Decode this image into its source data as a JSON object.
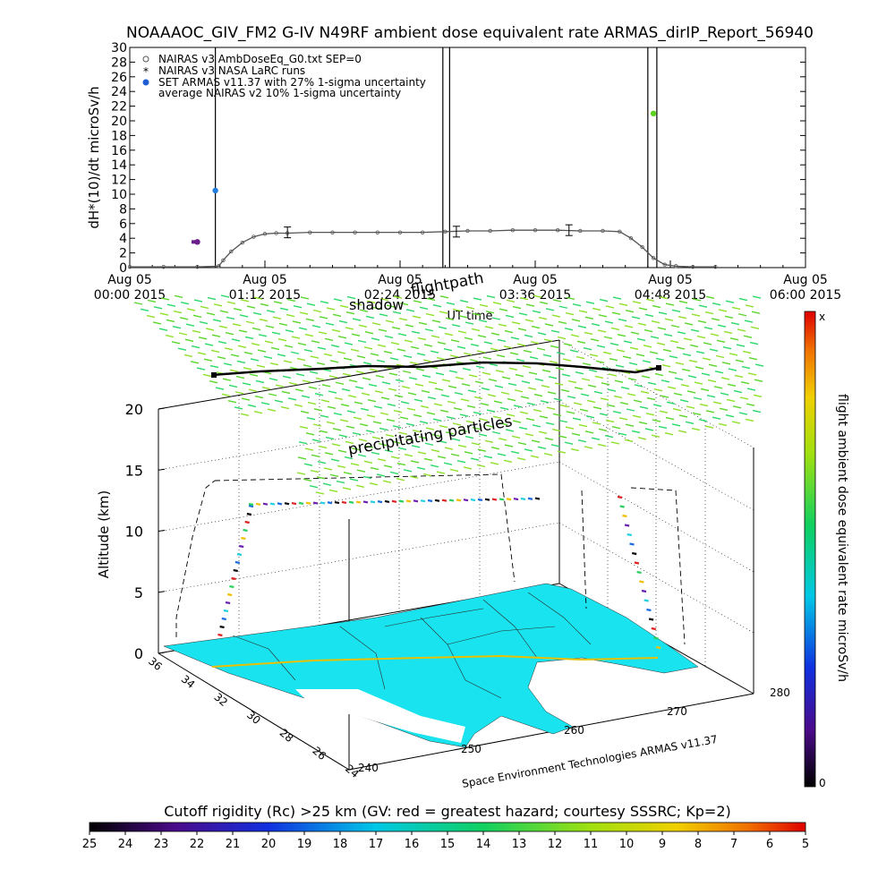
{
  "chart_data": [
    {
      "type": "line",
      "title": "NOAAAOC_GIV_FM2 G-IV    N49RF   ambient dose equivalent rate ARMAS_dirIP_Report_56940",
      "xlabel": "UT time",
      "ylabel": "dH*(10)/dt microSv/h",
      "ylim": [
        0,
        30
      ],
      "yticks": [
        "0",
        "2",
        "4",
        "6",
        "8",
        "10",
        "12",
        "14",
        "16",
        "18",
        "20",
        "22",
        "24",
        "26",
        "28",
        "30"
      ],
      "xtick_labels": [
        [
          "Aug 05",
          "00:00 2015"
        ],
        [
          "Aug 05",
          "01:12 2015"
        ],
        [
          "Aug 05",
          "02:24 2015"
        ],
        [
          "Aug 05",
          "03:36 2015"
        ],
        [
          "Aug 05",
          "04:48 2015"
        ],
        [
          "Aug 05",
          "06:00 2015"
        ]
      ],
      "xlim_hours": [
        0,
        6
      ],
      "legend": [
        "NAIRAS v3 AmbDoseEq_G0.txt SEP=0",
        "NAIRAS v3 NASA LaRC runs",
        "SET ARMAS v11.37 with 27% 1-sigma uncertainty",
        "average NAIRAS v2 10% 1-sigma uncertainty"
      ],
      "legend_colors": [
        "#555555",
        "#555555",
        "#1f5fd6",
        "#000000"
      ],
      "series": [
        {
          "name": "NAIRAS v3 AmbDoseEq_G0.txt SEP=0",
          "x": [
            0.0,
            0.3,
            0.6,
            0.79,
            0.83,
            0.9,
            1.0,
            1.1,
            1.2,
            1.3,
            1.4,
            1.6,
            1.8,
            2.0,
            2.2,
            2.4,
            2.6,
            2.8,
            3.0,
            3.2,
            3.4,
            3.6,
            3.8,
            4.0,
            4.2,
            4.35,
            4.45,
            4.55,
            4.65,
            4.75,
            4.85,
            5.0,
            5.2
          ],
          "y": [
            0.1,
            0.1,
            0.1,
            0.2,
            1.0,
            2.2,
            3.4,
            4.2,
            4.6,
            4.7,
            4.7,
            4.8,
            4.8,
            4.8,
            4.8,
            4.8,
            4.8,
            4.9,
            5.0,
            5.0,
            5.1,
            5.1,
            5.1,
            5.0,
            5.0,
            4.9,
            4.0,
            2.8,
            1.3,
            0.4,
            0.2,
            0.1,
            0.1
          ]
        },
        {
          "name": "NAIRAS v3 NASA LaRC runs",
          "x": [
            1.4,
            2.9,
            3.9
          ],
          "y": [
            4.8,
            4.9,
            5.1
          ]
        },
        {
          "name": "SET ARMAS v11.37 with 27% 1-sigma uncertainty",
          "x": [
            0.6,
            0.76,
            4.65
          ],
          "y": [
            3.5,
            10.5,
            21.0
          ],
          "colors": [
            "#6a1f8a",
            "#1f7de0",
            "#5ad21f"
          ]
        }
      ]
    },
    {
      "type": "scatter",
      "title": "flight ambient dose equivalent rate microSv/h",
      "zlabel": "Altitude (km)",
      "zticks": [
        "0",
        "5",
        "10",
        "15",
        "20"
      ],
      "x_ticks": [
        "240",
        "250",
        "260",
        "270",
        "280"
      ],
      "y_ticks": [
        "24",
        "26",
        "28",
        "30",
        "32",
        "34",
        "36"
      ],
      "annotations": [
        "shadow",
        "flightpath",
        "precipitating particles"
      ],
      "credit": "Space Environment Technologies ARMAS v11.37",
      "colorbar": {
        "min_label": "0",
        "max_label": "x"
      },
      "cutoff_title": "Cutoff rigidity (Rc) >25 km (GV: red = greatest hazard; courtesy SSSRC; Kp=2)",
      "cutoff_ticks": [
        "25",
        "24",
        "23",
        "22",
        "21",
        "20",
        "19",
        "18",
        "17",
        "16",
        "15",
        "14",
        "13",
        "12",
        "11",
        "10",
        "9",
        "8",
        "7",
        "6",
        "5"
      ]
    }
  ]
}
